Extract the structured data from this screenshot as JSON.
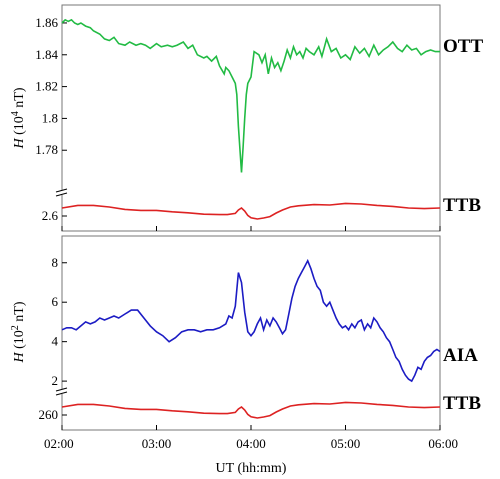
{
  "chart_data": [
    {
      "type": "line",
      "ylabel": "H (10^4 nT)",
      "ylabel_parts": {
        "var": "H",
        "pre": " (10",
        "exp": "4",
        "post": " nT)"
      },
      "upper": {
        "name": "OTT",
        "color": "#22bb44",
        "ylim": [
          1.755,
          1.865
        ],
        "yticks": [
          "1.86",
          "1.84",
          "1.82",
          "1.8",
          "1.78"
        ],
        "ytick_values": [
          1.86,
          1.84,
          1.82,
          1.8,
          1.78
        ],
        "x": [
          0,
          2,
          4,
          6,
          8,
          10,
          12,
          15,
          18,
          20,
          24,
          27,
          30,
          33,
          36,
          40,
          43,
          47,
          50,
          53,
          56,
          60,
          63,
          67,
          70,
          73,
          77,
          80,
          83,
          86,
          90,
          92,
          95,
          98,
          100,
          103,
          104,
          106,
          108,
          110,
          111,
          112,
          113,
          114,
          115,
          116,
          117,
          118,
          120,
          122,
          125,
          127,
          129,
          131,
          133,
          135,
          137,
          139,
          141,
          143,
          145,
          147,
          149,
          151,
          153,
          155,
          157,
          160,
          163,
          165,
          168,
          171,
          174,
          177,
          180,
          183,
          186,
          189,
          192,
          195,
          198,
          201,
          204,
          207,
          210,
          213,
          216,
          219,
          222,
          225,
          228,
          231,
          234,
          237,
          240
        ],
        "y": [
          1.86,
          1.862,
          1.861,
          1.862,
          1.86,
          1.859,
          1.86,
          1.858,
          1.857,
          1.855,
          1.853,
          1.85,
          1.849,
          1.851,
          1.847,
          1.846,
          1.848,
          1.846,
          1.847,
          1.846,
          1.844,
          1.847,
          1.845,
          1.846,
          1.845,
          1.846,
          1.848,
          1.844,
          1.846,
          1.84,
          1.838,
          1.839,
          1.836,
          1.839,
          1.833,
          1.828,
          1.832,
          1.83,
          1.826,
          1.822,
          1.815,
          1.795,
          1.78,
          1.766,
          1.782,
          1.8,
          1.815,
          1.822,
          1.826,
          1.842,
          1.84,
          1.835,
          1.84,
          1.828,
          1.838,
          1.832,
          1.835,
          1.83,
          1.836,
          1.843,
          1.838,
          1.845,
          1.84,
          1.842,
          1.838,
          1.844,
          1.842,
          1.84,
          1.845,
          1.839,
          1.85,
          1.842,
          1.844,
          1.838,
          1.84,
          1.837,
          1.845,
          1.841,
          1.844,
          1.839,
          1.846,
          1.84,
          1.843,
          1.845,
          1.848,
          1.844,
          1.842,
          1.846,
          1.843,
          1.844,
          1.84,
          1.842,
          1.843,
          1.842,
          1.842
        ]
      },
      "lower": {
        "name": "TTB",
        "color": "#dd2222",
        "ytick": "2.6",
        "x": [
          0,
          10,
          20,
          30,
          40,
          50,
          60,
          70,
          80,
          90,
          100,
          105,
          110,
          112,
          114,
          116,
          118,
          120,
          124,
          128,
          132,
          136,
          140,
          145,
          150,
          160,
          170,
          180,
          190,
          200,
          210,
          220,
          230,
          240
        ],
        "level": [
          0.55,
          0.68,
          0.68,
          0.6,
          0.48,
          0.43,
          0.43,
          0.36,
          0.31,
          0.24,
          0.22,
          0.22,
          0.28,
          0.45,
          0.55,
          0.4,
          0.18,
          0.06,
          0.0,
          0.05,
          0.12,
          0.3,
          0.45,
          0.6,
          0.66,
          0.72,
          0.7,
          0.78,
          0.75,
          0.68,
          0.63,
          0.55,
          0.52,
          0.55
        ]
      }
    },
    {
      "type": "line",
      "ylabel": "H (10^2 nT)",
      "ylabel_parts": {
        "var": "H",
        "pre": " (10",
        "exp": "2",
        "post": " nT)"
      },
      "upper": {
        "name": "AIA",
        "color": "#1c1cc4",
        "ylim": [
          1.6,
          8.9
        ],
        "yticks": [
          "8",
          "6",
          "4",
          "2"
        ],
        "ytick_values": [
          8,
          6,
          4,
          2
        ],
        "x": [
          0,
          3,
          6,
          9,
          12,
          15,
          18,
          21,
          24,
          27,
          30,
          33,
          36,
          40,
          44,
          48,
          52,
          56,
          60,
          64,
          68,
          72,
          76,
          80,
          84,
          88,
          92,
          96,
          100,
          104,
          106,
          108,
          110,
          112,
          114,
          116,
          118,
          120,
          122,
          124,
          126,
          128,
          130,
          132,
          134,
          136,
          138,
          140,
          142,
          144,
          146,
          148,
          150,
          152,
          154,
          156,
          158,
          160,
          162,
          164,
          166,
          168,
          170,
          172,
          174,
          176,
          178,
          180,
          182,
          184,
          186,
          188,
          190,
          192,
          194,
          196,
          198,
          200,
          202,
          204,
          206,
          208,
          210,
          212,
          214,
          216,
          218,
          220,
          222,
          224,
          226,
          228,
          230,
          232,
          234,
          236,
          238,
          240
        ],
        "y": [
          4.6,
          4.7,
          4.7,
          4.6,
          4.8,
          5.0,
          4.9,
          5.0,
          5.2,
          5.1,
          5.2,
          5.3,
          5.2,
          5.4,
          5.6,
          5.6,
          5.2,
          4.8,
          4.5,
          4.3,
          4.0,
          4.2,
          4.5,
          4.6,
          4.6,
          4.5,
          4.6,
          4.6,
          4.7,
          4.9,
          5.3,
          5.2,
          5.8,
          7.5,
          7.0,
          5.5,
          4.5,
          4.3,
          4.5,
          4.9,
          5.2,
          4.6,
          5.1,
          4.8,
          5.2,
          5.0,
          4.7,
          4.4,
          4.6,
          5.4,
          6.2,
          6.8,
          7.2,
          7.5,
          7.8,
          8.1,
          7.7,
          7.2,
          6.8,
          6.6,
          6.0,
          5.8,
          6.0,
          5.6,
          5.2,
          4.9,
          4.7,
          4.8,
          4.6,
          4.9,
          4.7,
          5.0,
          5.1,
          4.6,
          4.9,
          4.7,
          5.2,
          5.0,
          4.7,
          4.5,
          4.2,
          4.0,
          3.6,
          3.2,
          3.0,
          2.6,
          2.3,
          2.1,
          2.0,
          2.3,
          2.7,
          2.6,
          3.0,
          3.2,
          3.3,
          3.5,
          3.6,
          3.5
        ]
      },
      "lower": {
        "name": "TTB",
        "color": "#dd2222",
        "ytick": "260",
        "x": [
          0,
          10,
          20,
          30,
          40,
          50,
          60,
          70,
          80,
          90,
          100,
          105,
          110,
          112,
          114,
          116,
          118,
          120,
          124,
          128,
          132,
          136,
          140,
          145,
          150,
          160,
          170,
          180,
          190,
          200,
          210,
          220,
          230,
          240
        ],
        "level": [
          0.55,
          0.68,
          0.68,
          0.6,
          0.48,
          0.43,
          0.43,
          0.36,
          0.31,
          0.24,
          0.22,
          0.22,
          0.28,
          0.45,
          0.55,
          0.4,
          0.18,
          0.06,
          0.0,
          0.05,
          0.12,
          0.3,
          0.45,
          0.6,
          0.66,
          0.72,
          0.7,
          0.78,
          0.75,
          0.68,
          0.63,
          0.55,
          0.52,
          0.55
        ]
      }
    }
  ],
  "xaxis": {
    "label": "UT (hh:mm)",
    "ticks": [
      "02:00",
      "03:00",
      "04:00",
      "05:00",
      "06:00"
    ],
    "tick_minutes": [
      0,
      60,
      120,
      180,
      240
    ]
  }
}
